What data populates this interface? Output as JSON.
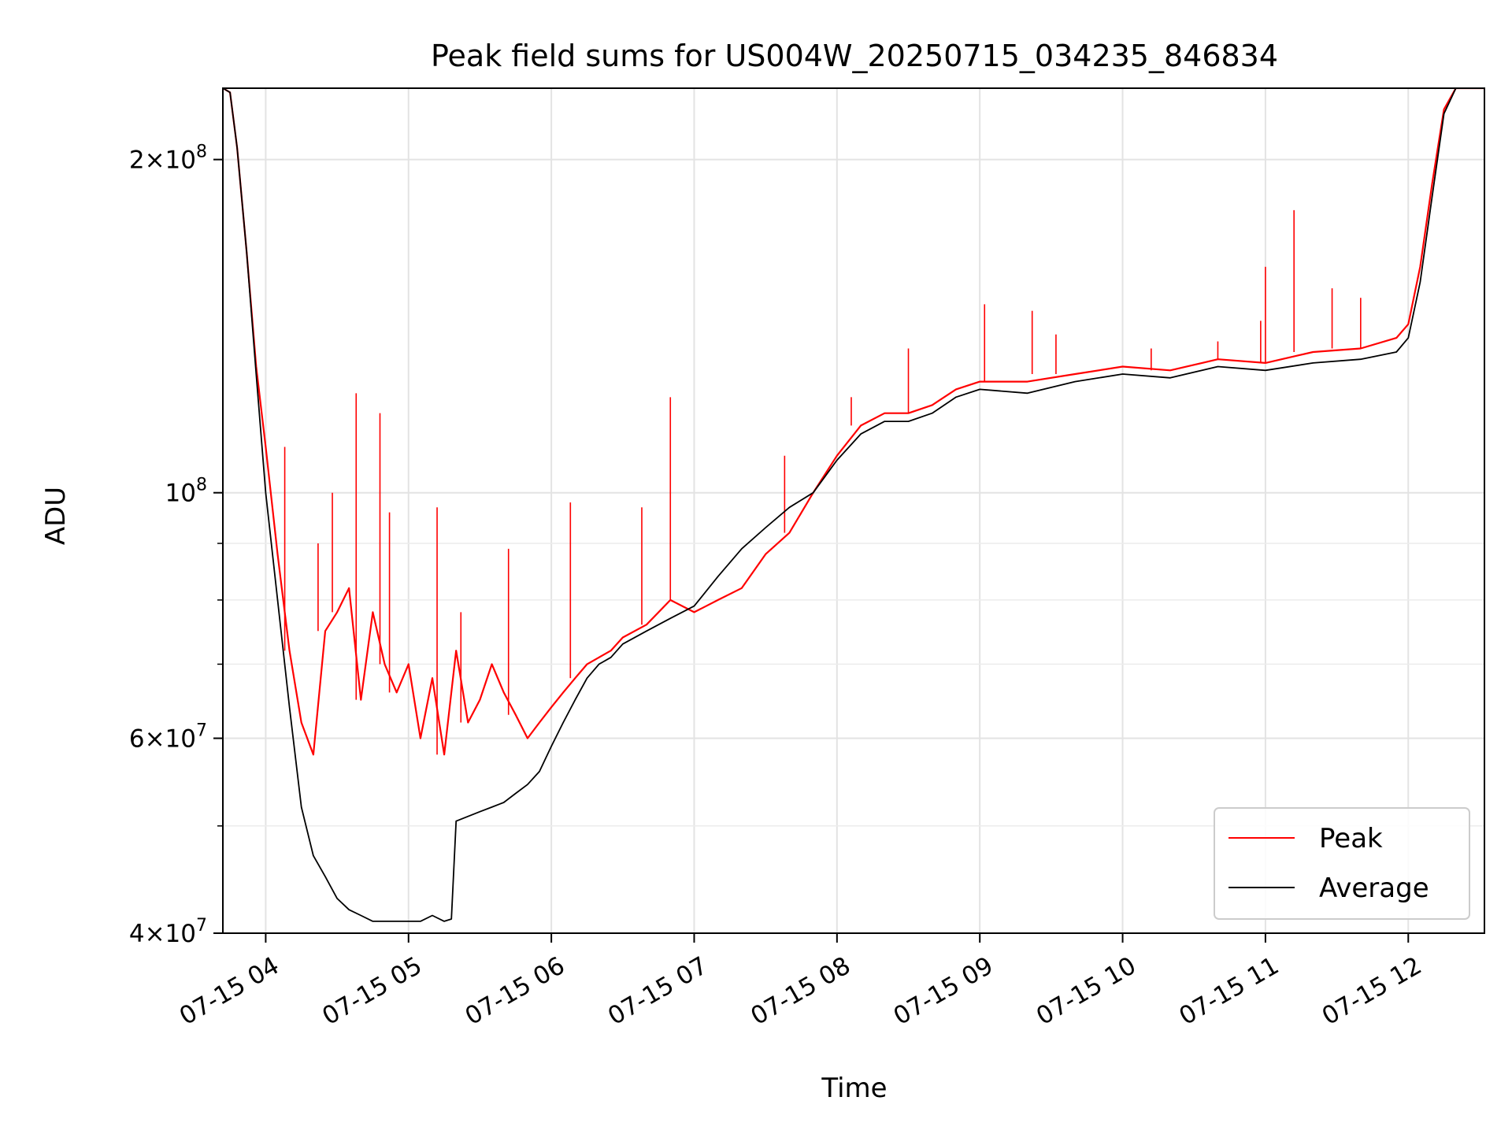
{
  "chart_data": {
    "type": "line",
    "title": "Peak field sums for US004W_20250715_034235_846834",
    "xlabel": "Time",
    "ylabel": "ADU",
    "yscale": "log",
    "ylim": [
      40000000,
      232000000
    ],
    "xlim": [
      "2025-07-15 03:42",
      "2025-07-15 12:32"
    ],
    "grid": true,
    "legend_position": "lower-right",
    "x_tick_labels": [
      "07-15 04",
      "07-15 05",
      "07-15 06",
      "07-15 07",
      "07-15 08",
      "07-15 09",
      "07-15 10",
      "07-15 11",
      "07-15 12"
    ],
    "y_tick_labels": [
      {
        "value": 40000000,
        "mantissa": "4",
        "exponent": "7"
      },
      {
        "value": 60000000,
        "mantissa": "6",
        "exponent": "7"
      },
      {
        "value": 100000000,
        "mantissa": "",
        "exponent": "8"
      },
      {
        "value": 200000000,
        "mantissa": "2",
        "exponent": "8"
      }
    ],
    "y_minor_ticks": [
      50000000,
      70000000,
      80000000,
      90000000
    ],
    "series": [
      {
        "name": "Peak",
        "color": "#ff0000",
        "points": [
          [
            "2025-07-15 03:42",
            232000000
          ],
          [
            "2025-07-15 03:45",
            230000000
          ],
          [
            "2025-07-15 03:48",
            205000000
          ],
          [
            "2025-07-15 03:52",
            165000000
          ],
          [
            "2025-07-15 03:56",
            130000000
          ],
          [
            "2025-07-15 04:00",
            110000000
          ],
          [
            "2025-07-15 04:05",
            88000000
          ],
          [
            "2025-07-15 04:10",
            72000000
          ],
          [
            "2025-07-15 04:15",
            62000000
          ],
          [
            "2025-07-15 04:20",
            58000000
          ],
          [
            "2025-07-15 04:25",
            75000000
          ],
          [
            "2025-07-15 04:30",
            78000000
          ],
          [
            "2025-07-15 04:35",
            82000000
          ],
          [
            "2025-07-15 04:40",
            65000000
          ],
          [
            "2025-07-15 04:45",
            78000000
          ],
          [
            "2025-07-15 04:50",
            70000000
          ],
          [
            "2025-07-15 04:55",
            66000000
          ],
          [
            "2025-07-15 05:00",
            70000000
          ],
          [
            "2025-07-15 05:05",
            60000000
          ],
          [
            "2025-07-15 05:10",
            68000000
          ],
          [
            "2025-07-15 05:15",
            58000000
          ],
          [
            "2025-07-15 05:20",
            72000000
          ],
          [
            "2025-07-15 05:25",
            62000000
          ],
          [
            "2025-07-15 05:30",
            65000000
          ],
          [
            "2025-07-15 05:35",
            70000000
          ],
          [
            "2025-07-15 05:40",
            66000000
          ],
          [
            "2025-07-15 05:45",
            63000000
          ],
          [
            "2025-07-15 05:50",
            60000000
          ],
          [
            "2025-07-15 05:55",
            62000000
          ],
          [
            "2025-07-15 06:00",
            64000000
          ],
          [
            "2025-07-15 06:05",
            66000000
          ],
          [
            "2025-07-15 06:10",
            68000000
          ],
          [
            "2025-07-15 06:15",
            70000000
          ],
          [
            "2025-07-15 06:20",
            71000000
          ],
          [
            "2025-07-15 06:25",
            72000000
          ],
          [
            "2025-07-15 06:30",
            74000000
          ],
          [
            "2025-07-15 06:40",
            76000000
          ],
          [
            "2025-07-15 06:50",
            80000000
          ],
          [
            "2025-07-15 07:00",
            78000000
          ],
          [
            "2025-07-15 07:10",
            80000000
          ],
          [
            "2025-07-15 07:20",
            82000000
          ],
          [
            "2025-07-15 07:30",
            88000000
          ],
          [
            "2025-07-15 07:40",
            92000000
          ],
          [
            "2025-07-15 07:50",
            100000000
          ],
          [
            "2025-07-15 08:00",
            108000000
          ],
          [
            "2025-07-15 08:10",
            115000000
          ],
          [
            "2025-07-15 08:20",
            118000000
          ],
          [
            "2025-07-15 08:30",
            118000000
          ],
          [
            "2025-07-15 08:40",
            120000000
          ],
          [
            "2025-07-15 08:50",
            124000000
          ],
          [
            "2025-07-15 09:00",
            126000000
          ],
          [
            "2025-07-15 09:20",
            126000000
          ],
          [
            "2025-07-15 09:40",
            128000000
          ],
          [
            "2025-07-15 10:00",
            130000000
          ],
          [
            "2025-07-15 10:20",
            129000000
          ],
          [
            "2025-07-15 10:40",
            132000000
          ],
          [
            "2025-07-15 11:00",
            131000000
          ],
          [
            "2025-07-15 11:20",
            134000000
          ],
          [
            "2025-07-15 11:40",
            135000000
          ],
          [
            "2025-07-15 11:55",
            138000000
          ],
          [
            "2025-07-15 12:00",
            142000000
          ],
          [
            "2025-07-15 12:05",
            160000000
          ],
          [
            "2025-07-15 12:10",
            190000000
          ],
          [
            "2025-07-15 12:15",
            222000000
          ],
          [
            "2025-07-15 12:20",
            232000000
          ],
          [
            "2025-07-15 12:32",
            232000000
          ]
        ],
        "spikes": [
          [
            "2025-07-15 04:08",
            110000000
          ],
          [
            "2025-07-15 04:22",
            90000000
          ],
          [
            "2025-07-15 04:28",
            100000000
          ],
          [
            "2025-07-15 04:38",
            123000000
          ],
          [
            "2025-07-15 04:48",
            118000000
          ],
          [
            "2025-07-15 04:52",
            96000000
          ],
          [
            "2025-07-15 05:12",
            97000000
          ],
          [
            "2025-07-15 05:22",
            78000000
          ],
          [
            "2025-07-15 05:42",
            89000000
          ],
          [
            "2025-07-15 06:08",
            98000000
          ],
          [
            "2025-07-15 06:38",
            97000000
          ],
          [
            "2025-07-15 06:50",
            122000000
          ],
          [
            "2025-07-15 07:38",
            108000000
          ],
          [
            "2025-07-15 08:06",
            122000000
          ],
          [
            "2025-07-15 08:30",
            135000000
          ],
          [
            "2025-07-15 09:02",
            148000000
          ],
          [
            "2025-07-15 09:22",
            146000000
          ],
          [
            "2025-07-15 09:32",
            139000000
          ],
          [
            "2025-07-15 10:12",
            135000000
          ],
          [
            "2025-07-15 10:40",
            137000000
          ],
          [
            "2025-07-15 10:58",
            143000000
          ],
          [
            "2025-07-15 11:00",
            160000000
          ],
          [
            "2025-07-15 11:12",
            180000000
          ],
          [
            "2025-07-15 11:28",
            153000000
          ],
          [
            "2025-07-15 11:40",
            150000000
          ]
        ]
      },
      {
        "name": "Average",
        "color": "#000000",
        "points": [
          [
            "2025-07-15 03:42",
            232000000
          ],
          [
            "2025-07-15 03:45",
            230000000
          ],
          [
            "2025-07-15 03:48",
            205000000
          ],
          [
            "2025-07-15 03:52",
            165000000
          ],
          [
            "2025-07-15 03:56",
            128000000
          ],
          [
            "2025-07-15 04:00",
            100000000
          ],
          [
            "2025-07-15 04:05",
            80000000
          ],
          [
            "2025-07-15 04:10",
            64000000
          ],
          [
            "2025-07-15 04:15",
            52000000
          ],
          [
            "2025-07-15 04:20",
            47000000
          ],
          [
            "2025-07-15 04:25",
            45000000
          ],
          [
            "2025-07-15 04:30",
            43000000
          ],
          [
            "2025-07-15 04:35",
            42000000
          ],
          [
            "2025-07-15 04:40",
            41500000
          ],
          [
            "2025-07-15 04:45",
            41000000
          ],
          [
            "2025-07-15 04:50",
            41000000
          ],
          [
            "2025-07-15 04:55",
            41000000
          ],
          [
            "2025-07-15 05:00",
            41000000
          ],
          [
            "2025-07-15 05:05",
            41000000
          ],
          [
            "2025-07-15 05:10",
            41500000
          ],
          [
            "2025-07-15 05:15",
            41000000
          ],
          [
            "2025-07-15 05:18",
            41200000
          ],
          [
            "2025-07-15 05:20",
            50500000
          ],
          [
            "2025-07-15 05:25",
            51000000
          ],
          [
            "2025-07-15 05:30",
            51500000
          ],
          [
            "2025-07-15 05:35",
            52000000
          ],
          [
            "2025-07-15 05:40",
            52500000
          ],
          [
            "2025-07-15 05:45",
            53500000
          ],
          [
            "2025-07-15 05:50",
            54500000
          ],
          [
            "2025-07-15 05:55",
            56000000
          ],
          [
            "2025-07-15 06:00",
            59000000
          ],
          [
            "2025-07-15 06:05",
            62000000
          ],
          [
            "2025-07-15 06:10",
            65000000
          ],
          [
            "2025-07-15 06:15",
            68000000
          ],
          [
            "2025-07-15 06:20",
            70000000
          ],
          [
            "2025-07-15 06:25",
            71000000
          ],
          [
            "2025-07-15 06:30",
            73000000
          ],
          [
            "2025-07-15 06:40",
            75000000
          ],
          [
            "2025-07-15 06:50",
            77000000
          ],
          [
            "2025-07-15 07:00",
            79000000
          ],
          [
            "2025-07-15 07:10",
            84000000
          ],
          [
            "2025-07-15 07:20",
            89000000
          ],
          [
            "2025-07-15 07:30",
            93000000
          ],
          [
            "2025-07-15 07:40",
            97000000
          ],
          [
            "2025-07-15 07:50",
            100000000
          ],
          [
            "2025-07-15 08:00",
            107000000
          ],
          [
            "2025-07-15 08:10",
            113000000
          ],
          [
            "2025-07-15 08:20",
            116000000
          ],
          [
            "2025-07-15 08:30",
            116000000
          ],
          [
            "2025-07-15 08:40",
            118000000
          ],
          [
            "2025-07-15 08:50",
            122000000
          ],
          [
            "2025-07-15 09:00",
            124000000
          ],
          [
            "2025-07-15 09:20",
            123000000
          ],
          [
            "2025-07-15 09:40",
            126000000
          ],
          [
            "2025-07-15 10:00",
            128000000
          ],
          [
            "2025-07-15 10:20",
            127000000
          ],
          [
            "2025-07-15 10:40",
            130000000
          ],
          [
            "2025-07-15 11:00",
            129000000
          ],
          [
            "2025-07-15 11:20",
            131000000
          ],
          [
            "2025-07-15 11:40",
            132000000
          ],
          [
            "2025-07-15 11:55",
            134000000
          ],
          [
            "2025-07-15 12:00",
            138000000
          ],
          [
            "2025-07-15 12:05",
            155000000
          ],
          [
            "2025-07-15 12:10",
            185000000
          ],
          [
            "2025-07-15 12:15",
            220000000
          ],
          [
            "2025-07-15 12:20",
            232000000
          ],
          [
            "2025-07-15 12:32",
            232000000
          ]
        ]
      }
    ]
  }
}
